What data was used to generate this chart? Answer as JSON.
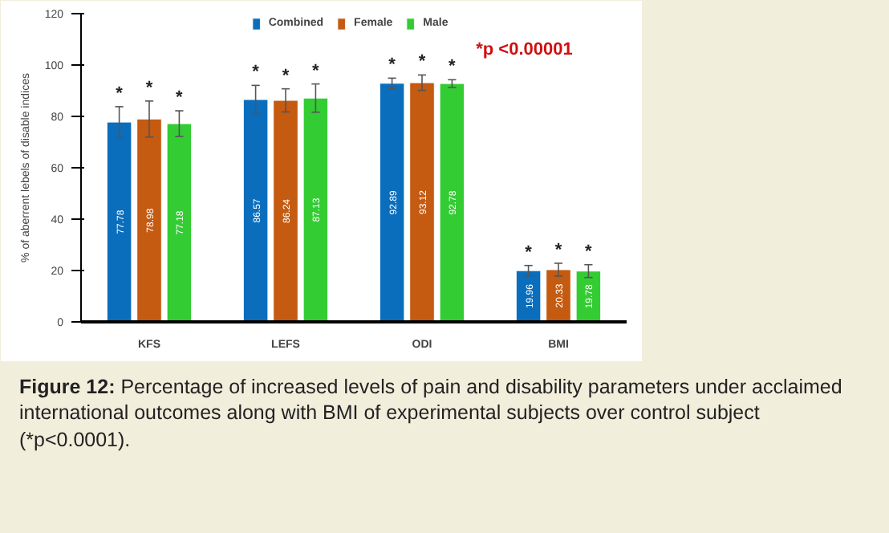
{
  "chart_data": {
    "type": "bar",
    "categories": [
      "KFS",
      "LEFS",
      "ODI",
      "BMI"
    ],
    "series": [
      {
        "name": "Combined",
        "color": "#0a6ebd",
        "values": [
          77.78,
          86.57,
          92.89,
          19.96
        ],
        "errors": [
          6,
          5.5,
          2,
          2
        ]
      },
      {
        "name": "Female",
        "color": "#c55a11",
        "values": [
          78.98,
          86.24,
          93.12,
          20.33
        ],
        "errors": [
          7,
          4.5,
          3,
          2.5
        ]
      },
      {
        "name": "Male",
        "color": "#33cc33",
        "values": [
          77.18,
          87.13,
          92.78,
          19.78
        ],
        "errors": [
          5,
          5.5,
          1.5,
          2.5
        ]
      }
    ],
    "ylabel": "% of aberrent lebels of disable indices",
    "ylim": [
      0,
      120
    ],
    "yticks": [
      0,
      20,
      40,
      60,
      80,
      100,
      120
    ],
    "grid": false,
    "legend": "top",
    "data_labels": true,
    "annotations": [
      "*",
      "*",
      "*",
      "*",
      "*",
      "*",
      "*",
      "*",
      "*",
      "*",
      "*",
      "*",
      "*p <0.00001",
      "Figure 12: Percentage of increased levels of pain and disability parameters under acclaimed international outcomes along with BMI of experimental subjects over control subject (*p<0.0001)."
    ]
  }
}
